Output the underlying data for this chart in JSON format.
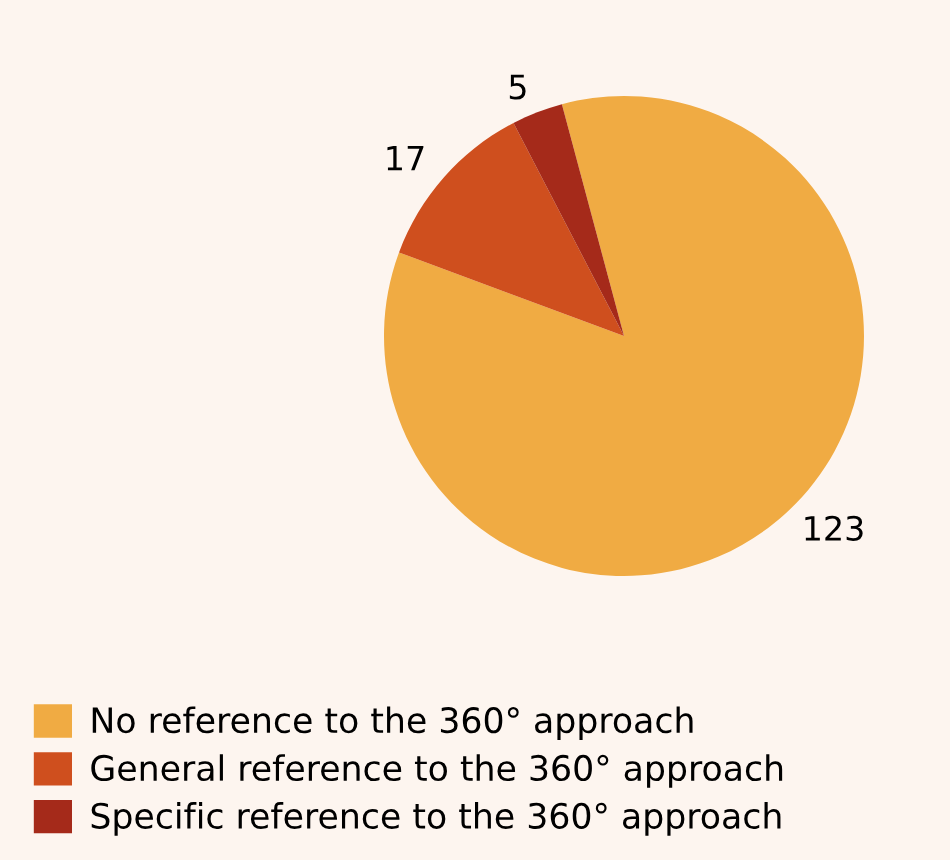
{
  "chart_data": {
    "type": "pie",
    "categories": [
      "No reference to the 360° approach",
      "General reference to the 360° approach",
      "Specific reference to the 360° approach"
    ],
    "values": [
      123,
      17,
      5
    ],
    "colors": [
      "#f0ab43",
      "#cf4f1e",
      "#a52a1a"
    ],
    "data_labels": true,
    "legend": "bottom left"
  }
}
